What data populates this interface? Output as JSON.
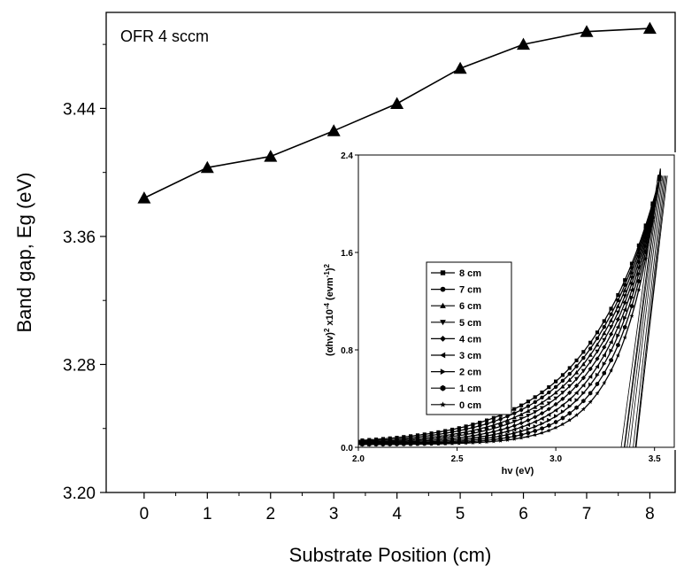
{
  "chart_data": [
    {
      "type": "line",
      "title": "",
      "annotation": "OFR 4 sccm",
      "xlabel": "Substrate Position (cm)",
      "ylabel": "Band gap, Eg (eV)",
      "xlim": [
        -0.6,
        8.4
      ],
      "ylim": [
        3.2,
        3.5
      ],
      "xticks": [
        "0",
        "1",
        "2",
        "3",
        "4",
        "5",
        "6",
        "7",
        "8"
      ],
      "yticks": [
        "3.20",
        "3.28",
        "3.36",
        "3.44"
      ],
      "marker": "triangle",
      "grid": false,
      "series": [
        {
          "x": [
            0,
            1,
            2,
            3,
            4,
            5,
            6,
            7,
            8
          ],
          "values": [
            3.384,
            3.403,
            3.41,
            3.426,
            3.443,
            3.465,
            3.48,
            3.488,
            3.49
          ]
        }
      ]
    },
    {
      "type": "line",
      "title": "",
      "xlabel": "hv (eV)",
      "ylabel_parts": {
        "a": "(αhv)",
        "sup1": "2",
        "b": " x10",
        "sup2": "-4",
        "c": " (evm",
        "sup3": "-1",
        "d": ")",
        "sup4": "2"
      },
      "xlim": [
        2.0,
        3.6
      ],
      "ylim": [
        0.0,
        2.4
      ],
      "xticks": [
        "2.0",
        "2.5",
        "3.0",
        "3.5"
      ],
      "yticks": [
        "0.0",
        "0.8",
        "1.6",
        "2.4"
      ],
      "legend_position": "left",
      "grid": false,
      "series": [
        {
          "name": "8 cm",
          "marker": "square",
          "band_gap": 3.49
        },
        {
          "name": "7 cm",
          "marker": "circle",
          "band_gap": 3.488
        },
        {
          "name": "6 cm",
          "marker": "triangle-up",
          "band_gap": 3.48
        },
        {
          "name": "5 cm",
          "marker": "triangle-down",
          "band_gap": 3.465
        },
        {
          "name": "4 cm",
          "marker": "diamond",
          "band_gap": 3.443
        },
        {
          "name": "3 cm",
          "marker": "triangle-left",
          "band_gap": 3.426
        },
        {
          "name": "2 cm",
          "marker": "triangle-right",
          "band_gap": 3.41
        },
        {
          "name": "1 cm",
          "marker": "hexagon",
          "band_gap": 3.403
        },
        {
          "name": "0 cm",
          "marker": "star",
          "band_gap": 3.384
        }
      ]
    }
  ]
}
